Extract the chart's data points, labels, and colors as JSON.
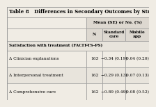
{
  "title": "Table 8   Differences in Secondary Outcomes by Study Grou",
  "header_span": "Mean (SE) or No. (%)",
  "col_n": "N",
  "col_standard": "Standard\ncare",
  "col_mobile": "Mobile\napp",
  "section": "Satisfaction with treatment (FACIT-TS-PS)",
  "rows": [
    {
      "label": "Δ Clinician explanations",
      "n": "163",
      "standard": "−0.34 (0.19)",
      "mobile": "0.04 (0.20)"
    },
    {
      "label": "Δ Interpersonal treatment",
      "n": "162",
      "standard": "−0.29 (0.13)",
      "mobile": "0.07 (0.13)"
    },
    {
      "label": "Δ Comprehensive care",
      "n": "162",
      "standard": "−0.89 (0.49)",
      "mobile": "0.08 (0.52)"
    }
  ],
  "bg_color": "#f0ece4",
  "header_bg": "#ddd8d0",
  "border_color": "#999999",
  "section_bg": "#e8e4dc",
  "row_bg_odd": "#f0ece4",
  "row_bg_even": "#e8e4dc",
  "title_fontsize": 5.0,
  "header_fontsize": 4.2,
  "cell_fontsize": 4.2
}
